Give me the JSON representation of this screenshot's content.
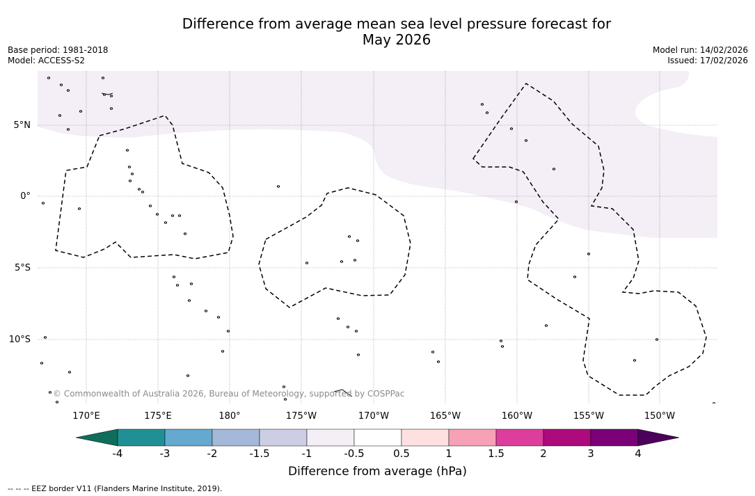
{
  "title": {
    "line1": "Difference from average mean sea level pressure forecast for",
    "line2": "May 2026"
  },
  "meta": {
    "base_period": "Base period: 1981-2018",
    "model": "Model: ACCESS-S2",
    "model_run": "Model run: 14/02/2026",
    "issued": "Issued: 17/02/2026"
  },
  "map": {
    "lat_labels": [
      "5°N",
      "0°",
      "5°S",
      "10°S"
    ],
    "lon_labels": [
      "170°E",
      "175°E",
      "180°",
      "175°W",
      "170°W",
      "165°W",
      "160°W",
      "155°W",
      "150°W"
    ],
    "copyright": "© Commonwealth of Australia 2026, Bureau of Meteorology, supported by COSPPac",
    "shaded_category": "-0.5 to -1 hPa"
  },
  "colorbar": {
    "title": "Difference from average (hPa)",
    "ticks": [
      "-4",
      "-3",
      "-2",
      "-1.5",
      "-1",
      "-0.5",
      "0.5",
      "1",
      "1.5",
      "2",
      "3",
      "4"
    ],
    "under_color": "#0f6e5b",
    "over_color": "#4b005a",
    "colors": [
      "#218f96",
      "#65a8d0",
      "#a4b8da",
      "#cdcde3",
      "#f4eef6",
      "#ffffff",
      "#fde0df",
      "#f7a1b6",
      "#dd3d9d",
      "#ad0a7e",
      "#7a0177"
    ]
  },
  "footer": {
    "legend_text": "--  --  -- EEZ border V11 (Flanders Marine Institute, 2019)."
  }
}
